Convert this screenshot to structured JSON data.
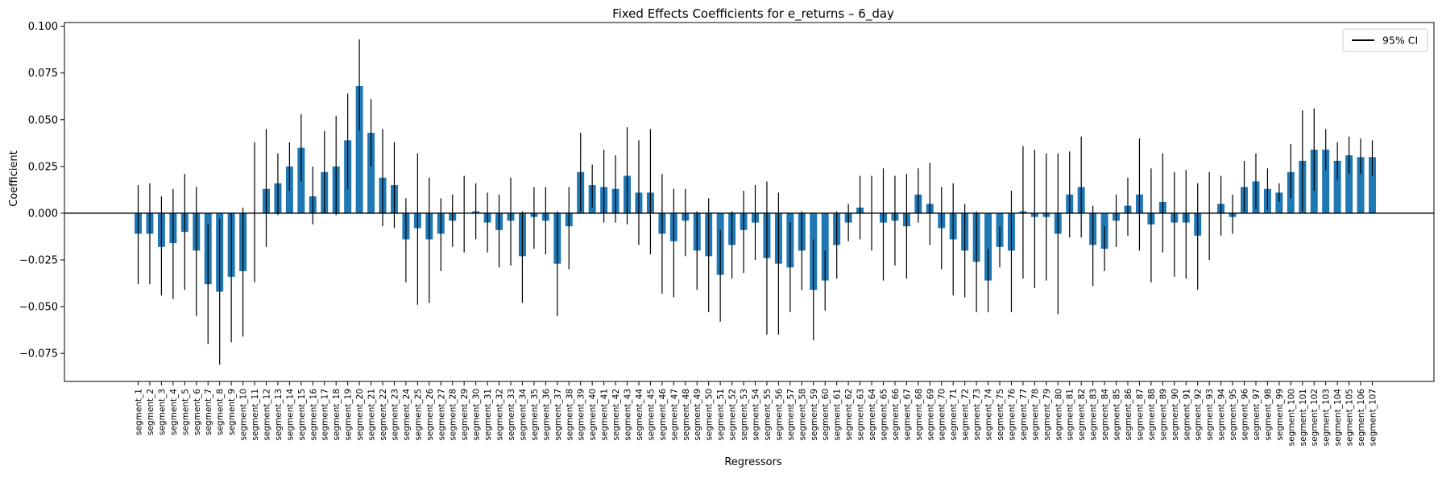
{
  "chart_data": {
    "type": "bar",
    "title": "Fixed Effects Coefficients for e_returns – 6_day",
    "xlabel": "Regressors",
    "ylabel": "Coefficient",
    "ylim": [
      -0.09,
      0.102
    ],
    "yticks": [
      -0.075,
      -0.05,
      -0.025,
      0.0,
      0.025,
      0.05,
      0.075,
      0.1
    ],
    "ytick_labels": [
      "−0.075",
      "−0.050",
      "−0.025",
      "0.000",
      "0.025",
      "0.050",
      "0.075",
      "0.100"
    ],
    "legend": {
      "label": "95% CI",
      "placement": "top-right"
    },
    "grid": false,
    "bar_color": "#1f77b4",
    "categories": [
      "segment_1",
      "segment_2",
      "segment_3",
      "segment_4",
      "segment_5",
      "segment_6",
      "segment_7",
      "segment_8",
      "segment_9",
      "segment_10",
      "segment_11",
      "segment_12",
      "segment_13",
      "segment_14",
      "segment_15",
      "segment_16",
      "segment_17",
      "segment_18",
      "segment_19",
      "segment_20",
      "segment_21",
      "segment_22",
      "segment_23",
      "segment_24",
      "segment_25",
      "segment_26",
      "segment_27",
      "segment_28",
      "segment_29",
      "segment_30",
      "segment_31",
      "segment_32",
      "segment_33",
      "segment_34",
      "segment_35",
      "segment_36",
      "segment_37",
      "segment_38",
      "segment_39",
      "segment_40",
      "segment_41",
      "segment_42",
      "segment_43",
      "segment_44",
      "segment_45",
      "segment_46",
      "segment_47",
      "segment_48",
      "segment_49",
      "segment_50",
      "segment_51",
      "segment_52",
      "segment_53",
      "segment_54",
      "segment_55",
      "segment_56",
      "segment_57",
      "segment_58",
      "segment_59",
      "segment_60",
      "segment_61",
      "segment_62",
      "segment_63",
      "segment_64",
      "segment_65",
      "segment_66",
      "segment_67",
      "segment_68",
      "segment_69",
      "segment_70",
      "segment_71",
      "segment_72",
      "segment_73",
      "segment_74",
      "segment_75",
      "segment_76",
      "segment_77",
      "segment_78",
      "segment_79",
      "segment_80",
      "segment_81",
      "segment_82",
      "segment_83",
      "segment_84",
      "segment_85",
      "segment_86",
      "segment_87",
      "segment_88",
      "segment_89",
      "segment_90",
      "segment_91",
      "segment_92",
      "segment_93",
      "segment_94",
      "segment_95",
      "segment_96",
      "segment_97",
      "segment_98",
      "segment_99",
      "segment_100",
      "segment_101",
      "segment_102",
      "segment_103",
      "segment_104",
      "segment_105",
      "segment_106",
      "segment_107"
    ],
    "values": [
      -0.011,
      -0.011,
      -0.018,
      -0.016,
      -0.01,
      -0.02,
      -0.038,
      -0.042,
      -0.034,
      -0.031,
      0.0,
      0.013,
      0.016,
      0.025,
      0.035,
      0.009,
      0.022,
      0.025,
      0.039,
      0.068,
      0.043,
      0.019,
      0.015,
      -0.014,
      -0.008,
      -0.014,
      -0.011,
      -0.004,
      0.0,
      0.001,
      -0.005,
      -0.009,
      -0.004,
      -0.023,
      -0.002,
      -0.004,
      -0.027,
      -0.007,
      0.022,
      0.015,
      0.014,
      0.013,
      0.02,
      0.011,
      0.011,
      -0.011,
      -0.015,
      -0.004,
      -0.02,
      -0.023,
      -0.033,
      -0.017,
      -0.009,
      -0.005,
      -0.024,
      -0.027,
      -0.029,
      -0.02,
      -0.041,
      -0.036,
      -0.017,
      -0.005,
      0.003,
      0.0,
      -0.005,
      -0.004,
      -0.007,
      0.01,
      0.005,
      -0.008,
      -0.014,
      -0.02,
      -0.026,
      -0.036,
      -0.018,
      -0.02,
      0.001,
      -0.002,
      -0.002,
      -0.011,
      0.01,
      0.014,
      -0.017,
      -0.019,
      -0.004,
      0.004,
      0.01,
      -0.006,
      0.006,
      -0.005,
      -0.005,
      -0.012,
      0.0,
      0.005,
      -0.002,
      0.014,
      0.017,
      0.013,
      0.011,
      0.022,
      0.028,
      0.034,
      0.034,
      0.028,
      0.031,
      0.03,
      0.03
    ],
    "ci_lower": [
      -0.038,
      -0.038,
      -0.044,
      -0.046,
      -0.041,
      -0.055,
      -0.07,
      -0.081,
      -0.069,
      -0.066,
      -0.037,
      -0.018,
      -0.001,
      0.012,
      0.017,
      -0.006,
      0.0,
      -0.001,
      0.013,
      0.044,
      0.025,
      -0.007,
      -0.008,
      -0.037,
      -0.049,
      -0.048,
      -0.031,
      -0.018,
      -0.021,
      -0.014,
      -0.021,
      -0.029,
      -0.028,
      -0.048,
      -0.019,
      -0.022,
      -0.055,
      -0.03,
      0.001,
      0.003,
      -0.005,
      -0.005,
      -0.006,
      -0.017,
      -0.022,
      -0.043,
      -0.045,
      -0.023,
      -0.041,
      -0.053,
      -0.058,
      -0.035,
      -0.032,
      -0.025,
      -0.065,
      -0.065,
      -0.053,
      -0.041,
      -0.068,
      -0.052,
      -0.035,
      -0.015,
      -0.014,
      -0.02,
      -0.036,
      -0.028,
      -0.035,
      -0.005,
      -0.017,
      -0.03,
      -0.044,
      -0.045,
      -0.053,
      -0.053,
      -0.029,
      -0.053,
      -0.035,
      -0.04,
      -0.036,
      -0.054,
      -0.013,
      -0.013,
      -0.039,
      -0.031,
      -0.018,
      -0.012,
      -0.02,
      -0.037,
      -0.021,
      -0.034,
      -0.035,
      -0.041,
      -0.025,
      -0.012,
      -0.011,
      0.001,
      0.002,
      0.002,
      0.006,
      0.008,
      0.001,
      0.012,
      0.023,
      0.018,
      0.021,
      0.021,
      0.02
    ],
    "ci_upper": [
      0.015,
      0.016,
      0.009,
      0.013,
      0.021,
      0.014,
      -0.006,
      -0.003,
      0.0,
      0.003,
      0.038,
      0.045,
      0.032,
      0.038,
      0.053,
      0.025,
      0.044,
      0.052,
      0.064,
      0.093,
      0.061,
      0.045,
      0.038,
      0.008,
      0.032,
      0.019,
      0.008,
      0.01,
      0.02,
      0.016,
      0.011,
      0.01,
      0.019,
      0.001,
      0.014,
      0.014,
      0.001,
      0.014,
      0.043,
      0.026,
      0.034,
      0.031,
      0.046,
      0.039,
      0.045,
      0.021,
      0.013,
      0.013,
      0.001,
      0.008,
      -0.009,
      0.001,
      0.012,
      0.015,
      0.017,
      0.011,
      -0.005,
      0.001,
      -0.014,
      -0.02,
      0.001,
      0.005,
      0.02,
      0.02,
      0.024,
      0.02,
      0.021,
      0.024,
      0.027,
      0.014,
      0.016,
      0.005,
      0.001,
      -0.019,
      -0.007,
      0.012,
      0.036,
      0.034,
      0.032,
      0.032,
      0.033,
      0.041,
      0.004,
      -0.007,
      0.01,
      0.019,
      0.04,
      0.024,
      0.032,
      0.022,
      0.023,
      0.016,
      0.022,
      0.02,
      0.01,
      0.028,
      0.032,
      0.024,
      0.016,
      0.037,
      0.055,
      0.056,
      0.045,
      0.038,
      0.041,
      0.04,
      0.039
    ]
  }
}
